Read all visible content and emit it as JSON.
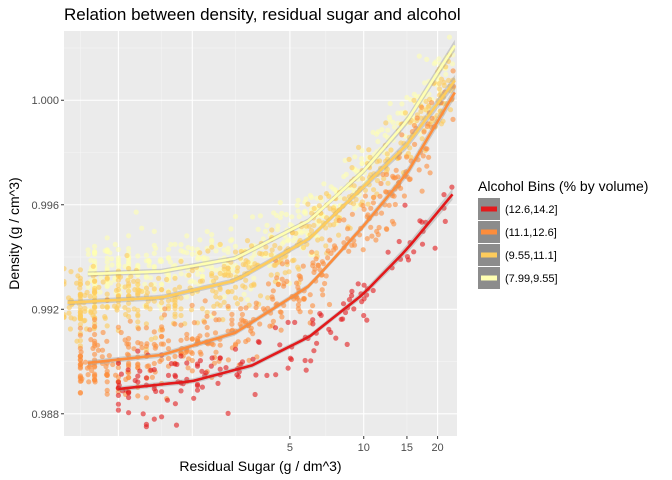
{
  "chart_data": {
    "type": "scatter",
    "title": "Relation between density, residual sugar and alcohol",
    "xlabel": "Residual Sugar (g / dm^3)",
    "ylabel": "Density (g / cm^3)",
    "x_scale": "log10",
    "xlim": [
      0.6,
      24
    ],
    "ylim": [
      0.98715,
      1.00265
    ],
    "x_ticks": [
      5,
      10,
      15,
      20
    ],
    "y_ticks": [
      0.988,
      0.992,
      0.996,
      1.0
    ],
    "y_tick_labels": [
      "0.988",
      "0.992",
      "0.996",
      "1.000"
    ],
    "grid": true,
    "legend": {
      "title": "Alcohol Bins (% by volume)",
      "position": "right"
    },
    "series": [
      {
        "name": "(12.6,14.2]",
        "color": "#e31a1c",
        "trend": [
          [
            1.0,
            0.98895
          ],
          [
            2.0,
            0.98925
          ],
          [
            3.5,
            0.98985
          ],
          [
            6.0,
            0.99095
          ],
          [
            10.0,
            0.9926
          ],
          [
            15.0,
            0.9943
          ],
          [
            23.0,
            0.9964
          ]
        ],
        "x_range": [
          1.0,
          23.0
        ],
        "y_spread": 0.0011,
        "n_points": 150
      },
      {
        "name": "(11.1,12.6]",
        "color": "#fd8d3c",
        "trend": [
          [
            0.75,
            0.98995
          ],
          [
            1.5,
            0.99025
          ],
          [
            3.0,
            0.9911
          ],
          [
            6.0,
            0.9929
          ],
          [
            10.0,
            0.9952
          ],
          [
            15.0,
            0.9972
          ],
          [
            23.5,
            1.0003
          ]
        ],
        "x_range": [
          0.7,
          23.5
        ],
        "y_spread": 0.0012,
        "n_points": 420
      },
      {
        "name": "(9.55,11.1]",
        "color": "#fecc5c",
        "trend": [
          [
            0.62,
            0.99225
          ],
          [
            1.5,
            0.99245
          ],
          [
            3.0,
            0.9931
          ],
          [
            6.0,
            0.9947
          ],
          [
            10.0,
            0.9967
          ],
          [
            15.0,
            0.9983
          ],
          [
            23.5,
            1.00075
          ]
        ],
        "x_range": [
          0.62,
          23.5
        ],
        "y_spread": 0.0012,
        "n_points": 500
      },
      {
        "name": "(7.99,9.55]",
        "color": "#ffffb2",
        "trend": [
          [
            0.75,
            0.99335
          ],
          [
            1.5,
            0.99345
          ],
          [
            3.0,
            0.99395
          ],
          [
            6.0,
            0.9954
          ],
          [
            10.0,
            0.9973
          ],
          [
            15.0,
            0.9992
          ],
          [
            23.5,
            1.0021
          ]
        ],
        "x_range": [
          0.75,
          23.5
        ],
        "y_spread": 0.0011,
        "n_points": 480
      }
    ]
  }
}
